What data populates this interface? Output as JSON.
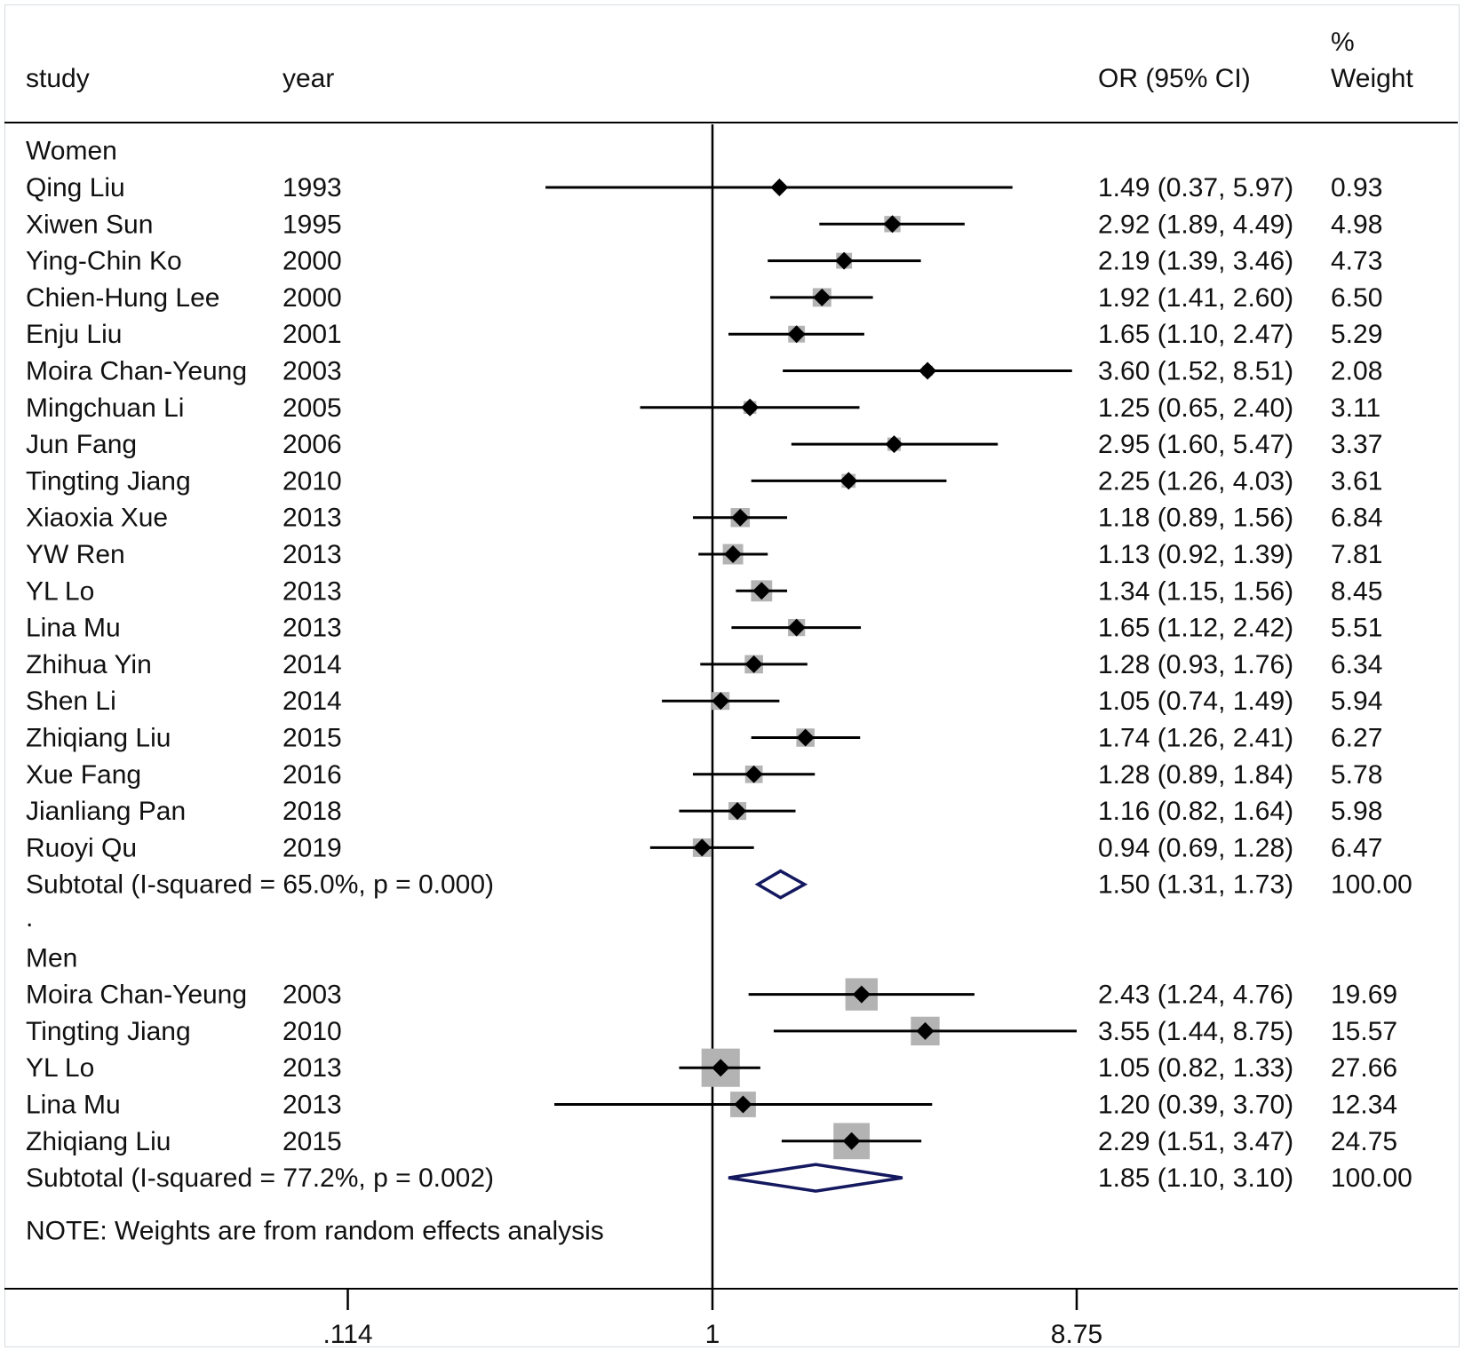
{
  "chart_data": {
    "type": "forest",
    "x_scale": "log",
    "headers": {
      "study": "study",
      "year": "year",
      "or_ci": "OR (95% CI)",
      "weight_line1": "%",
      "weight_line2": "Weight"
    },
    "x_ticks": [
      {
        "value": 0.114,
        "label": ".114"
      },
      {
        "value": 1,
        "label": "1"
      },
      {
        "value": 8.75,
        "label": "8.75"
      }
    ],
    "reference_line": 1,
    "groups": [
      {
        "name": "Women",
        "studies": [
          {
            "study": "Qing Liu",
            "year": "1993",
            "or": 1.49,
            "lo": 0.37,
            "hi": 5.97,
            "or_ci_text": "1.49 (0.37, 5.97)",
            "weight_text": "0.93",
            "weight": 0.93
          },
          {
            "study": "Xiwen Sun",
            "year": "1995",
            "or": 2.92,
            "lo": 1.89,
            "hi": 4.49,
            "or_ci_text": "2.92 (1.89, 4.49)",
            "weight_text": "4.98",
            "weight": 4.98
          },
          {
            "study": "Ying-Chin Ko",
            "year": "2000",
            "or": 2.19,
            "lo": 1.39,
            "hi": 3.46,
            "or_ci_text": "2.19 (1.39, 3.46)",
            "weight_text": "4.73",
            "weight": 4.73
          },
          {
            "study": "Chien-Hung Lee",
            "year": "2000",
            "or": 1.92,
            "lo": 1.41,
            "hi": 2.6,
            "or_ci_text": "1.92 (1.41, 2.60)",
            "weight_text": "6.50",
            "weight": 6.5
          },
          {
            "study": "Enju Liu",
            "year": "2001",
            "or": 1.65,
            "lo": 1.1,
            "hi": 2.47,
            "or_ci_text": "1.65 (1.10, 2.47)",
            "weight_text": "5.29",
            "weight": 5.29
          },
          {
            "study": "Moira Chan-Yeung",
            "year": "2003",
            "or": 3.6,
            "lo": 1.52,
            "hi": 8.51,
            "or_ci_text": "3.60 (1.52, 8.51)",
            "weight_text": "2.08",
            "weight": 2.08
          },
          {
            "study": "Mingchuan Li",
            "year": "2005",
            "or": 1.25,
            "lo": 0.65,
            "hi": 2.4,
            "or_ci_text": "1.25 (0.65, 2.40)",
            "weight_text": "3.11",
            "weight": 3.11
          },
          {
            "study": "Jun Fang",
            "year": "2006",
            "or": 2.95,
            "lo": 1.6,
            "hi": 5.47,
            "or_ci_text": "2.95 (1.60, 5.47)",
            "weight_text": "3.37",
            "weight": 3.37
          },
          {
            "study": "Tingting Jiang",
            "year": "2010",
            "or": 2.25,
            "lo": 1.26,
            "hi": 4.03,
            "or_ci_text": "2.25 (1.26, 4.03)",
            "weight_text": "3.61",
            "weight": 3.61
          },
          {
            "study": "Xiaoxia Xue",
            "year": "2013",
            "or": 1.18,
            "lo": 0.89,
            "hi": 1.56,
            "or_ci_text": "1.18 (0.89, 1.56)",
            "weight_text": "6.84",
            "weight": 6.84
          },
          {
            "study": "YW Ren",
            "year": "2013",
            "or": 1.13,
            "lo": 0.92,
            "hi": 1.39,
            "or_ci_text": "1.13 (0.92, 1.39)",
            "weight_text": "7.81",
            "weight": 7.81
          },
          {
            "study": "YL Lo",
            "year": "2013",
            "or": 1.34,
            "lo": 1.15,
            "hi": 1.56,
            "or_ci_text": "1.34 (1.15, 1.56)",
            "weight_text": "8.45",
            "weight": 8.45
          },
          {
            "study": "Lina Mu",
            "year": "2013",
            "or": 1.65,
            "lo": 1.12,
            "hi": 2.42,
            "or_ci_text": "1.65 (1.12, 2.42)",
            "weight_text": "5.51",
            "weight": 5.51
          },
          {
            "study": "Zhihua Yin",
            "year": "2014",
            "or": 1.28,
            "lo": 0.93,
            "hi": 1.76,
            "or_ci_text": "1.28 (0.93, 1.76)",
            "weight_text": "6.34",
            "weight": 6.34
          },
          {
            "study": "Shen Li",
            "year": "2014",
            "or": 1.05,
            "lo": 0.74,
            "hi": 1.49,
            "or_ci_text": "1.05 (0.74, 1.49)",
            "weight_text": "5.94",
            "weight": 5.94
          },
          {
            "study": "Zhiqiang Liu",
            "year": "2015",
            "or": 1.74,
            "lo": 1.26,
            "hi": 2.41,
            "or_ci_text": "1.74 (1.26, 2.41)",
            "weight_text": "6.27",
            "weight": 6.27
          },
          {
            "study": "Xue Fang",
            "year": "2016",
            "or": 1.28,
            "lo": 0.89,
            "hi": 1.84,
            "or_ci_text": "1.28 (0.89, 1.84)",
            "weight_text": "5.78",
            "weight": 5.78
          },
          {
            "study": "Jianliang Pan",
            "year": "2018",
            "or": 1.16,
            "lo": 0.82,
            "hi": 1.64,
            "or_ci_text": "1.16 (0.82, 1.64)",
            "weight_text": "5.98",
            "weight": 5.98
          },
          {
            "study": "Ruoyi Qu",
            "year": "2019",
            "or": 0.94,
            "lo": 0.69,
            "hi": 1.28,
            "or_ci_text": "0.94 (0.69, 1.28)",
            "weight_text": "6.47",
            "weight": 6.47
          }
        ],
        "subtotal": {
          "label": "Subtotal  (I-squared = 65.0%, p = 0.000)",
          "or": 1.5,
          "lo": 1.31,
          "hi": 1.73,
          "or_ci_text": "1.50 (1.31, 1.73)",
          "weight_text": "100.00"
        }
      },
      {
        "name": "Men",
        "studies": [
          {
            "study": "Moira Chan-Yeung",
            "year": "2003",
            "or": 2.43,
            "lo": 1.24,
            "hi": 4.76,
            "or_ci_text": "2.43 (1.24, 4.76)",
            "weight_text": "19.69",
            "weight": 19.69
          },
          {
            "study": "Tingting Jiang",
            "year": "2010",
            "or": 3.55,
            "lo": 1.44,
            "hi": 8.75,
            "or_ci_text": "3.55 (1.44, 8.75)",
            "weight_text": "15.57",
            "weight": 15.57
          },
          {
            "study": "YL Lo",
            "year": "2013",
            "or": 1.05,
            "lo": 0.82,
            "hi": 1.33,
            "or_ci_text": "1.05 (0.82, 1.33)",
            "weight_text": "27.66",
            "weight": 27.66
          },
          {
            "study": "Lina Mu",
            "year": "2013",
            "or": 1.2,
            "lo": 0.39,
            "hi": 3.7,
            "or_ci_text": "1.20 (0.39, 3.70)",
            "weight_text": "12.34",
            "weight": 12.34
          },
          {
            "study": "Zhiqiang Liu",
            "year": "2015",
            "or": 2.29,
            "lo": 1.51,
            "hi": 3.47,
            "or_ci_text": "2.29 (1.51, 3.47)",
            "weight_text": "24.75",
            "weight": 24.75
          }
        ],
        "subtotal": {
          "label": "Subtotal  (I-squared = 77.2%, p = 0.002)",
          "or": 1.85,
          "lo": 1.1,
          "hi": 3.1,
          "or_ci_text": "1.85 (1.10, 3.10)",
          "weight_text": "100.00"
        }
      }
    ],
    "separator_text": ".",
    "note": "NOTE: Weights are from random effects analysis",
    "colors": {
      "text": "#111111",
      "line": "#000000",
      "box": "#b3b3b3",
      "diamond": "#14195f",
      "frame_border": "#d6dde3"
    }
  }
}
